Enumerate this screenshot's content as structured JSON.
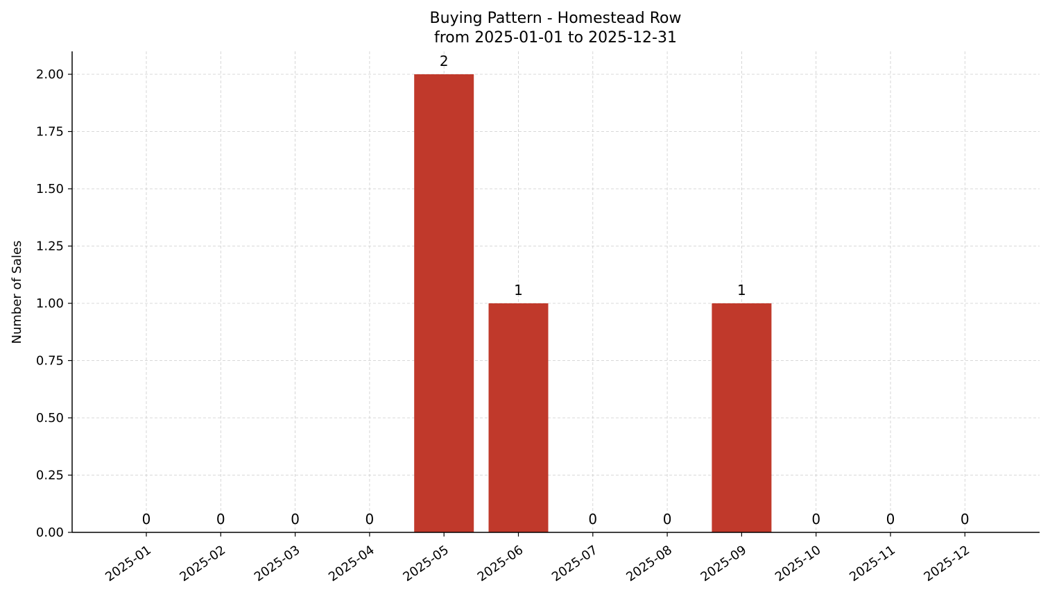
{
  "chart_data": {
    "type": "bar",
    "title": "Buying Pattern - Homestead Row",
    "subtitle": "from 2025-01-01 to 2025-12-31",
    "xlabel": "",
    "ylabel": "Number of Sales",
    "categories": [
      "2025-01",
      "2025-02",
      "2025-03",
      "2025-04",
      "2025-05",
      "2025-06",
      "2025-07",
      "2025-08",
      "2025-09",
      "2025-10",
      "2025-11",
      "2025-12"
    ],
    "values": [
      0,
      0,
      0,
      0,
      2,
      1,
      0,
      0,
      1,
      0,
      0,
      0
    ],
    "data_labels": [
      "0",
      "0",
      "0",
      "0",
      "2",
      "1",
      "0",
      "0",
      "1",
      "0",
      "0",
      "0"
    ],
    "ylim": [
      0,
      2.1
    ],
    "yticks": [
      0,
      0.25,
      0.5,
      0.75,
      1.0,
      1.25,
      1.5,
      1.75,
      2.0
    ],
    "ytick_labels": [
      "0.00",
      "0.25",
      "0.50",
      "0.75",
      "1.00",
      "1.25",
      "1.50",
      "1.75",
      "2.00"
    ],
    "bar_color": "#c0392b",
    "grid": true,
    "legend": "none"
  }
}
